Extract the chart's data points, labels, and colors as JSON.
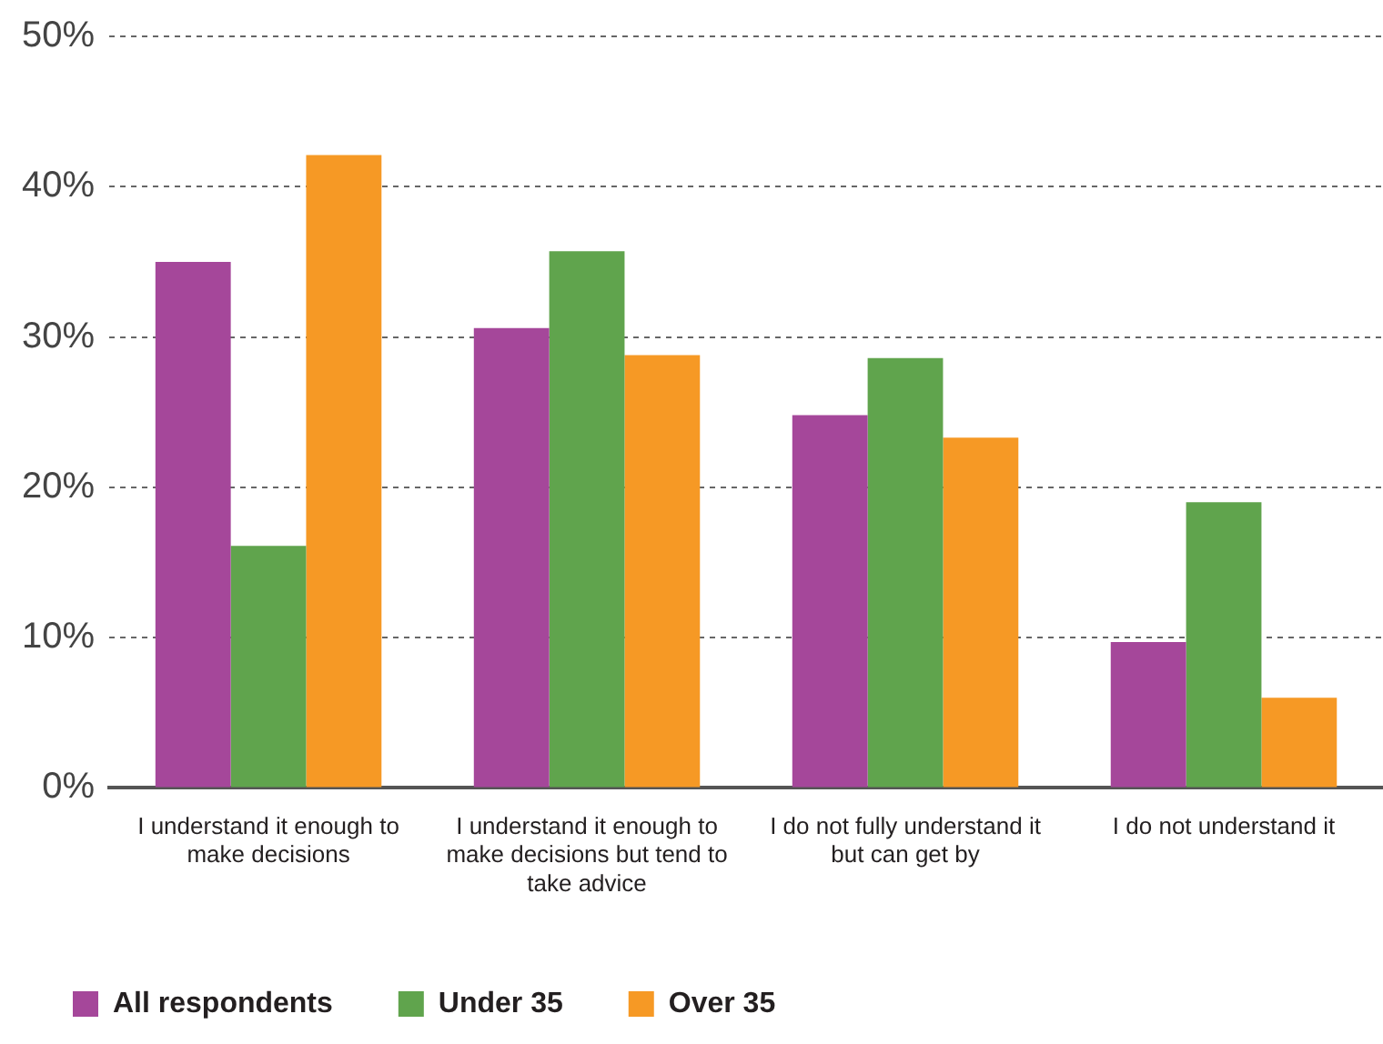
{
  "chart_data": {
    "type": "bar",
    "categories": [
      "I understand it enough to make decisions",
      "I understand it enough to make decisions but tend to take advice",
      "I do not fully understand it but can get by",
      "I do not understand it"
    ],
    "series": [
      {
        "name": "All respondents",
        "color": "#a5479a",
        "values": [
          35.0,
          30.6,
          24.8,
          9.7
        ]
      },
      {
        "name": "Under 35",
        "color": "#60a44d",
        "values": [
          16.1,
          35.7,
          28.6,
          19.0
        ]
      },
      {
        "name": "Over 35",
        "color": "#f69925",
        "values": [
          42.1,
          28.8,
          23.3,
          6.0
        ]
      }
    ],
    "ylim": [
      0,
      50
    ],
    "yticks": [
      {
        "value": 0,
        "label": "0%"
      },
      {
        "value": 10,
        "label": "10%"
      },
      {
        "value": 20,
        "label": "20%"
      },
      {
        "value": 30,
        "label": "30%"
      },
      {
        "value": 40,
        "label": "40%"
      },
      {
        "value": 50,
        "label": "50%"
      }
    ],
    "grid": "y",
    "legend": "bottom left"
  }
}
